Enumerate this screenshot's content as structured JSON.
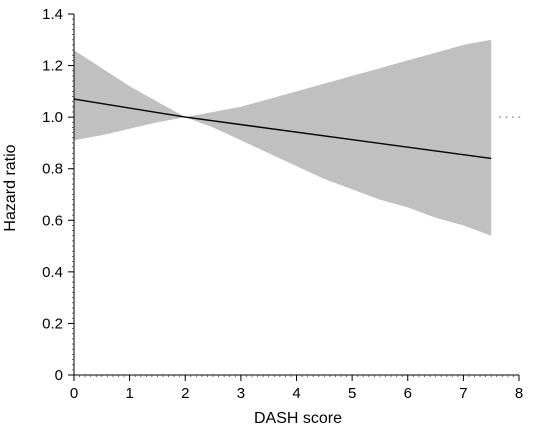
{
  "chart_data": {
    "type": "line",
    "title": "",
    "xlabel": "DASH score",
    "ylabel": "Hazard ratio",
    "xlim": [
      0,
      8
    ],
    "ylim": [
      0,
      1.4
    ],
    "xticks": [
      0,
      1,
      2,
      3,
      4,
      5,
      6,
      7,
      8
    ],
    "xtick_labels": [
      "0",
      "1",
      "2",
      "3",
      "4",
      "5",
      "6",
      "7",
      "8"
    ],
    "yticks": [
      0,
      0.2,
      0.4,
      0.6,
      0.8,
      1.0,
      1.2,
      1.4
    ],
    "ytick_labels": [
      "0",
      "0.2",
      "0.4",
      "0.6",
      "0.8",
      "1.0",
      "1.2",
      "1.4"
    ],
    "grid": false,
    "legend": "none",
    "reference_line": {
      "y": 1.0,
      "style": "dotted"
    },
    "series": [
      {
        "x": [
          0,
          2,
          7.5
        ],
        "y": [
          1.07,
          1.0,
          0.84
        ],
        "ci_lower": [
          0.91,
          1.0,
          0.54
        ],
        "ci_upper": [
          1.26,
          1.0,
          1.3
        ]
      }
    ],
    "band_shape": {
      "x": [
        0,
        0.5,
        1,
        1.5,
        2,
        2.5,
        3,
        3.5,
        4,
        4.5,
        5,
        5.5,
        6,
        6.5,
        7,
        7.5
      ],
      "lower": [
        0.91,
        0.93,
        0.955,
        0.98,
        1.0,
        0.96,
        0.91,
        0.86,
        0.81,
        0.76,
        0.72,
        0.68,
        0.65,
        0.61,
        0.58,
        0.54
      ],
      "upper": [
        1.26,
        1.19,
        1.12,
        1.06,
        1.0,
        1.02,
        1.04,
        1.07,
        1.1,
        1.13,
        1.16,
        1.19,
        1.22,
        1.25,
        1.28,
        1.3
      ]
    },
    "colors": {
      "band": "#c0c0c0",
      "line": "#000000",
      "axis": "#000000",
      "reference": "#555555"
    }
  }
}
